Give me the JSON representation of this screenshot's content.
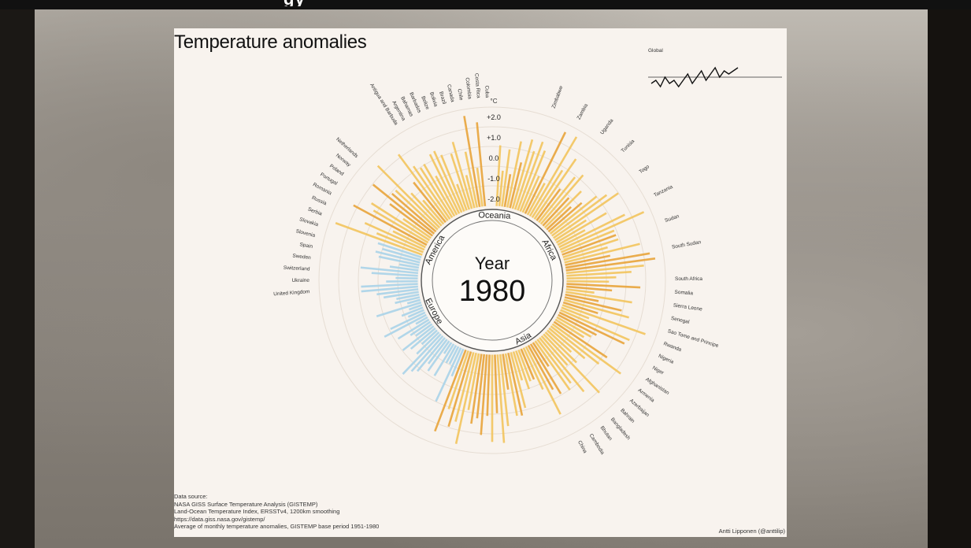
{
  "slide_title_fragment": "gy",
  "chart_data": {
    "type": "radial-bar",
    "title": "Temperature anomalies",
    "year_label": "Year",
    "year": "1980",
    "unit": "°C",
    "scale_ticks": [
      "+2.0",
      "+1.0",
      "0.0",
      "-1.0",
      "-2.0"
    ],
    "regions": [
      "Oceania",
      "Africa",
      "Asia",
      "Europe",
      "America"
    ],
    "inset": {
      "label": "Global",
      "values": [
        -0.2,
        -0.1,
        -0.3,
        0.0,
        -0.2,
        -0.1,
        -0.3,
        -0.1,
        0.1,
        -0.2,
        0.0,
        0.2,
        -0.1,
        0.1,
        0.3,
        0.0,
        0.2,
        0.1,
        0.2,
        0.3
      ]
    },
    "country_labels_visible": [
      "United Kingdom",
      "Ukraine",
      "Switzerland",
      "Sweden",
      "Spain",
      "Slovenia",
      "Slovakia",
      "Serbia",
      "Russia",
      "Romania",
      "Portugal",
      "Poland",
      "Norway",
      "Netherlands",
      "Antigua and Barbuda",
      "Argentina",
      "Bahamas",
      "Barbados",
      "Belize",
      "Bolivia",
      "Brazil",
      "Canada",
      "Chile",
      "Colombia",
      "Costa Rica",
      "Cuba",
      "Zimbabwe",
      "Zambia",
      "Uganda",
      "Tunisia",
      "Togo",
      "Tanzania",
      "Sudan",
      "South Sudan",
      "South Africa",
      "Somalia",
      "Sierra Leone",
      "Senegal",
      "Sao Tome and Principe",
      "Rwanda",
      "Nigeria",
      "Niger",
      "Afghanistan",
      "Armenia",
      "Azerbaijan",
      "Bahrain",
      "Bangladesh",
      "Bhutan",
      "Cambodia",
      "China"
    ]
  },
  "source": {
    "heading": "Data source:",
    "line1": "NASA GISS Surface Temperature Analysis (GISTEMP)",
    "line2": "Land-Ocean Temperature Index, ERSSTv4, 1200km smoothing",
    "line3": "https://data.giss.nasa.gov/gistemp/",
    "line4": "Average of monthly temperature anomalies, GISTEMP base period 1951-1980"
  },
  "credit": "Antti Lipponen (@anttilip)",
  "colors": {
    "warm": "#f2c45c",
    "warm_dark": "#e8a43a",
    "cool": "#a9d3e8",
    "panel": "#f8f3ee"
  }
}
